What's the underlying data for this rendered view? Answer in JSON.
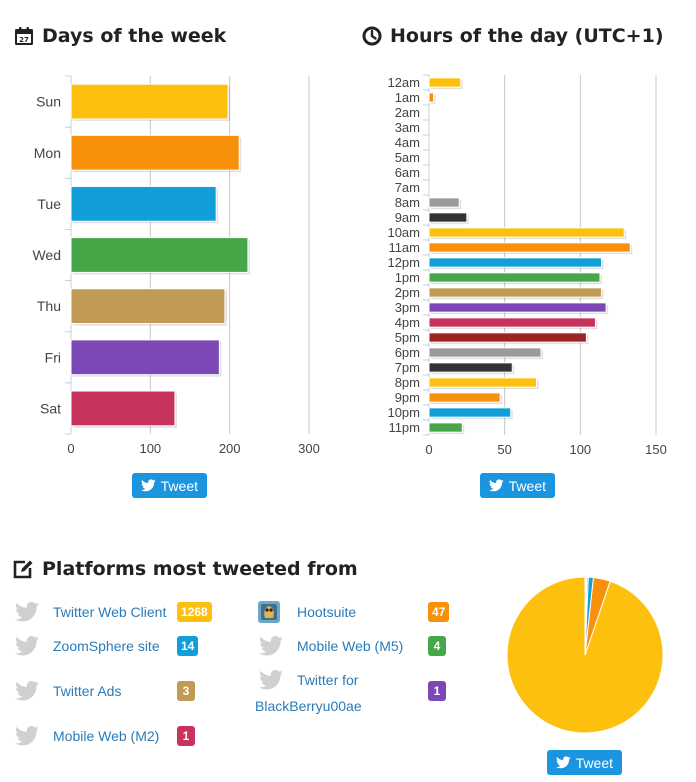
{
  "sections": {
    "days_title": "Days of the week",
    "hours_title": "Hours of the day (UTC+1)",
    "platforms_title": "Platforms most tweeted from"
  },
  "buttons": {
    "tweet_label": "Tweet"
  },
  "colors": {
    "yellow": "#fdc00f",
    "orange": "#f7900a",
    "blue": "#129fd9",
    "green": "#45a748",
    "tan": "#c19a54",
    "purple": "#7b48b6",
    "crimson": "#c7335c",
    "gray": "#9a9a9a",
    "dark": "#333333",
    "darkred": "#9c2424",
    "twitter_blue": "#1b95e0",
    "link": "#2a7bb8"
  },
  "chart_data": [
    {
      "type": "bar",
      "orientation": "horizontal",
      "categories": [
        "Sun",
        "Mon",
        "Tue",
        "Wed",
        "Thu",
        "Fri",
        "Sat"
      ],
      "values": [
        198,
        212,
        183,
        223,
        194,
        187,
        131
      ],
      "xlim": [
        0,
        300
      ],
      "xticks": [
        0,
        100,
        200,
        300
      ],
      "grid": true,
      "colors": [
        "#fdc00f",
        "#f7900a",
        "#129fd9",
        "#45a748",
        "#c19a54",
        "#7b48b6",
        "#c7335c"
      ]
    },
    {
      "type": "bar",
      "orientation": "horizontal",
      "categories": [
        "12am",
        "1am",
        "2am",
        "3am",
        "4am",
        "5am",
        "6am",
        "7am",
        "8am",
        "9am",
        "10am",
        "11am",
        "12pm",
        "1pm",
        "2pm",
        "3pm",
        "4pm",
        "5pm",
        "6pm",
        "7pm",
        "8pm",
        "9pm",
        "10pm",
        "11pm"
      ],
      "values": [
        21,
        3,
        0,
        0,
        0,
        0,
        0,
        0,
        20,
        25,
        129,
        133,
        114,
        113,
        114,
        117,
        110,
        104,
        74,
        55,
        71,
        47,
        54,
        22
      ],
      "xlim": [
        0,
        150
      ],
      "xticks": [
        0,
        50,
        100,
        150
      ],
      "grid": true,
      "colors": [
        "#fdc00f",
        "#f7900a",
        "#129fd9",
        "#45a748",
        "#c19a54",
        "#7b48b6",
        "#c7335c",
        "#9c2424",
        "#9a9a9a",
        "#333333"
      ]
    },
    {
      "type": "pie",
      "labels": [
        "Twitter Web Client",
        "Hootsuite",
        "ZoomSphere site",
        "Mobile Web (M5)",
        "Twitter Ads",
        "Twitter for BlackBerryu00ae",
        "Mobile Web (M2)"
      ],
      "values": [
        1268,
        47,
        14,
        4,
        3,
        1,
        1
      ],
      "colors": [
        "#fdc00f",
        "#f7900a",
        "#129fd9",
        "#45a748",
        "#c19a54",
        "#7b48b6",
        "#c7335c"
      ]
    }
  ],
  "platforms": [
    {
      "name": "Twitter Web Client",
      "count": "1268",
      "icon": "twitter-bird-icon",
      "color": "#fdc00f"
    },
    {
      "name": "ZoomSphere site",
      "count": "14",
      "icon": "twitter-bird-icon",
      "color": "#129fd9"
    },
    {
      "name": "Twitter Ads",
      "count": "3",
      "icon": "twitter-bird-icon",
      "color": "#c19a54"
    },
    {
      "name": "Mobile Web (M2)",
      "count": "1",
      "icon": "twitter-bird-icon",
      "color": "#c7335c"
    },
    {
      "name": "Hootsuite",
      "count": "47",
      "icon": "hootsuite-owl-icon",
      "color": "#f7900a"
    },
    {
      "name": "Mobile Web (M5)",
      "count": "4",
      "icon": "twitter-bird-icon",
      "color": "#45a748"
    },
    {
      "name_line1": "Twitter for",
      "name_line2": "BlackBerryu00ae",
      "count": "1",
      "icon": "twitter-bird-icon",
      "color": "#7b48b6"
    }
  ]
}
